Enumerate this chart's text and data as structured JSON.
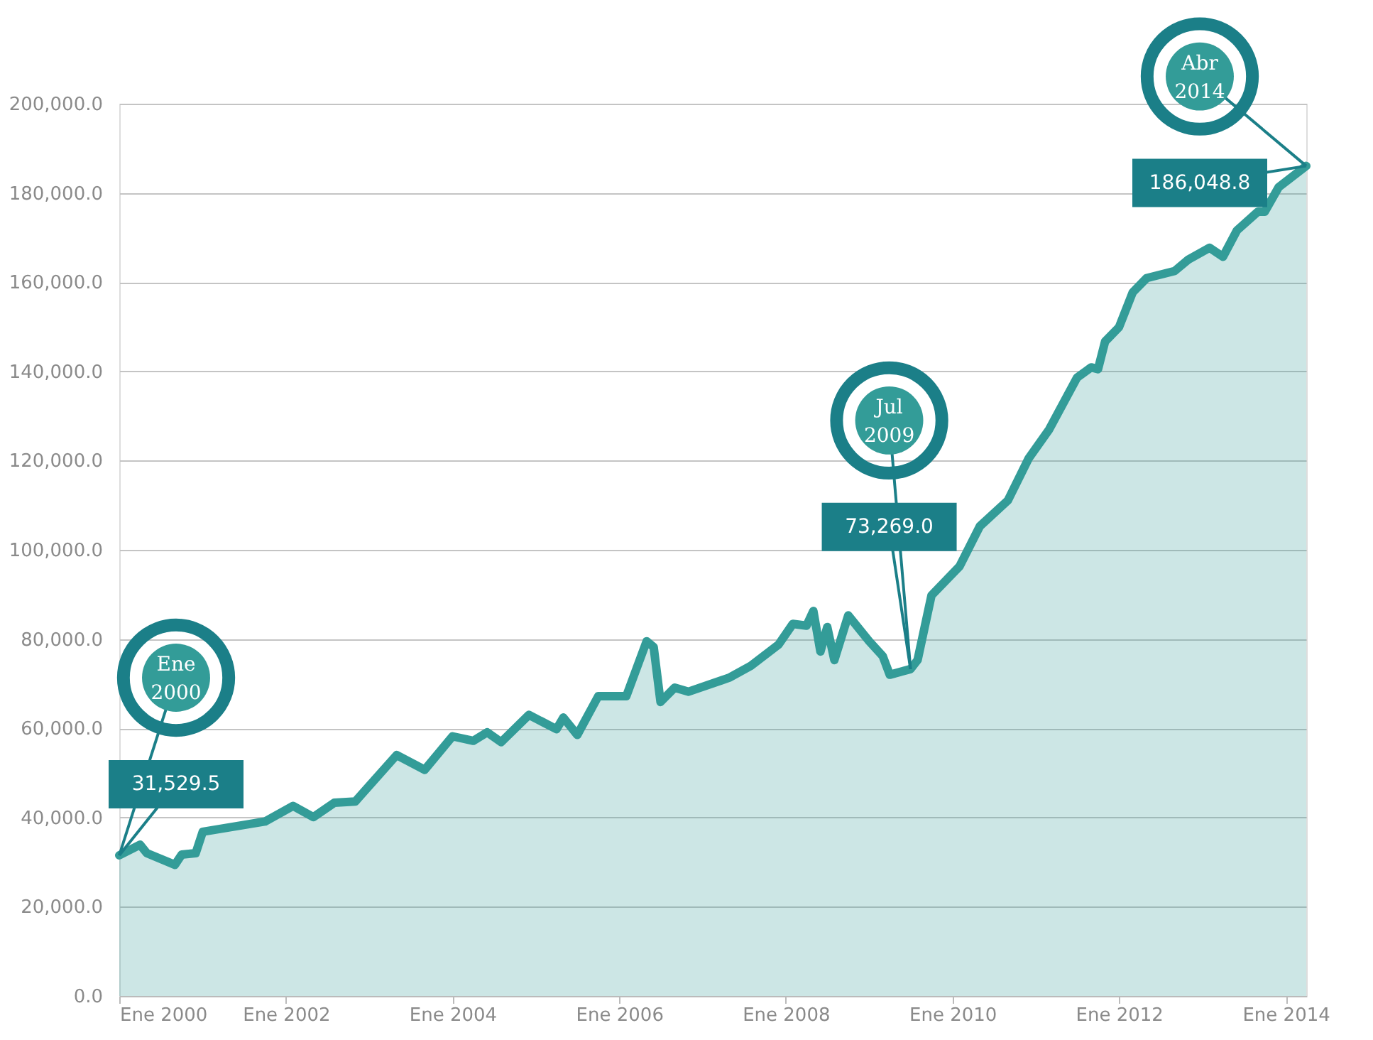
{
  "chart_data": {
    "type": "area",
    "x": [
      "2000-01",
      "2000-04",
      "2000-05",
      "2000-09",
      "2000-10",
      "2000-12",
      "2001-01",
      "2001-10",
      "2002-02",
      "2002-05",
      "2002-08",
      "2002-11",
      "2003-05",
      "2003-09",
      "2004-01",
      "2004-04",
      "2004-06",
      "2004-08",
      "2004-12",
      "2005-04",
      "2005-05",
      "2005-07",
      "2005-10",
      "2006-02",
      "2006-05",
      "2006-06",
      "2006-07",
      "2006-09",
      "2006-11",
      "2007-05",
      "2007-08",
      "2007-12",
      "2008-02",
      "2008-04",
      "2008-05",
      "2008-06",
      "2008-07",
      "2008-08",
      "2008-10",
      "2009-01",
      "2009-03",
      "2009-04",
      "2009-07",
      "2009-08",
      "2009-10",
      "2010-02",
      "2010-05",
      "2010-09",
      "2010-12",
      "2011-03",
      "2011-07",
      "2011-09",
      "2011-10",
      "2011-11",
      "2012-01",
      "2012-03",
      "2012-05",
      "2012-09",
      "2012-11",
      "2013-02",
      "2013-04",
      "2013-06",
      "2013-09",
      "2013-10",
      "2013-12",
      "2014-04"
    ],
    "series": [
      {
        "color": "#339c98",
        "values": [
          31529.5,
          33900,
          32000,
          29400,
          31700,
          32000,
          36800,
          39100,
          42600,
          40100,
          43300,
          43600,
          54000,
          50700,
          58200,
          57200,
          59100,
          56900,
          63000,
          59800,
          62400,
          58500,
          67200,
          67200,
          79500,
          78200,
          65900,
          69100,
          68200,
          71400,
          74000,
          78800,
          83400,
          83000,
          86300,
          77200,
          82700,
          75300,
          85300,
          79500,
          76200,
          72000,
          73269.0,
          75300,
          89800,
          96300,
          105300,
          111100,
          120500,
          127000,
          138600,
          140900,
          140500,
          146700,
          149900,
          157700,
          160900,
          162500,
          165100,
          167700,
          165700,
          171600,
          175800,
          175800,
          181300,
          186048.8
        ]
      }
    ],
    "xlim": [
      "2000-01",
      "2014-04"
    ],
    "xticks": [
      {
        "value": "2000-01",
        "label": "Ene 2000"
      },
      {
        "value": "2002-01",
        "label": "Ene 2002"
      },
      {
        "value": "2004-01",
        "label": "Ene 2004"
      },
      {
        "value": "2006-01",
        "label": "Ene 2006"
      },
      {
        "value": "2008-01",
        "label": "Ene 2008"
      },
      {
        "value": "2010-01",
        "label": "Ene 2010"
      },
      {
        "value": "2012-01",
        "label": "Ene 2012"
      },
      {
        "value": "2014-01",
        "label": "Ene 2014"
      }
    ],
    "ylim": [
      0,
      200000
    ],
    "yticks": [
      {
        "value": 0,
        "label": "0.0"
      },
      {
        "value": 20000,
        "label": "20,000.0"
      },
      {
        "value": 40000,
        "label": "40,000.0"
      },
      {
        "value": 60000,
        "label": "60,000.0"
      },
      {
        "value": 80000,
        "label": "80,000.0"
      },
      {
        "value": 100000,
        "label": "100,000.0"
      },
      {
        "value": 120000,
        "label": "120,000.0"
      },
      {
        "value": 140000,
        "label": "140,000.0"
      },
      {
        "value": 160000,
        "label": "160,000.0"
      },
      {
        "value": 180000,
        "label": "180,000.0"
      },
      {
        "value": 200000,
        "label": "200,000.0"
      }
    ],
    "grid": "y",
    "annotations": [
      {
        "text": "Ene 2000",
        "x": "2000-01",
        "y": 31529.5
      },
      {
        "text": "31,529.5",
        "x": "2000-01",
        "y": 31529.5
      },
      {
        "text": "Jul 2009",
        "x": "2009-07",
        "y": 73269.0
      },
      {
        "text": "73,269.0",
        "x": "2009-07",
        "y": 73269.0
      },
      {
        "text": "Abr 2014",
        "x": "2014-04",
        "y": 186048.8
      },
      {
        "text": "186,048.8",
        "x": "2014-04",
        "y": 186048.8
      }
    ]
  }
}
